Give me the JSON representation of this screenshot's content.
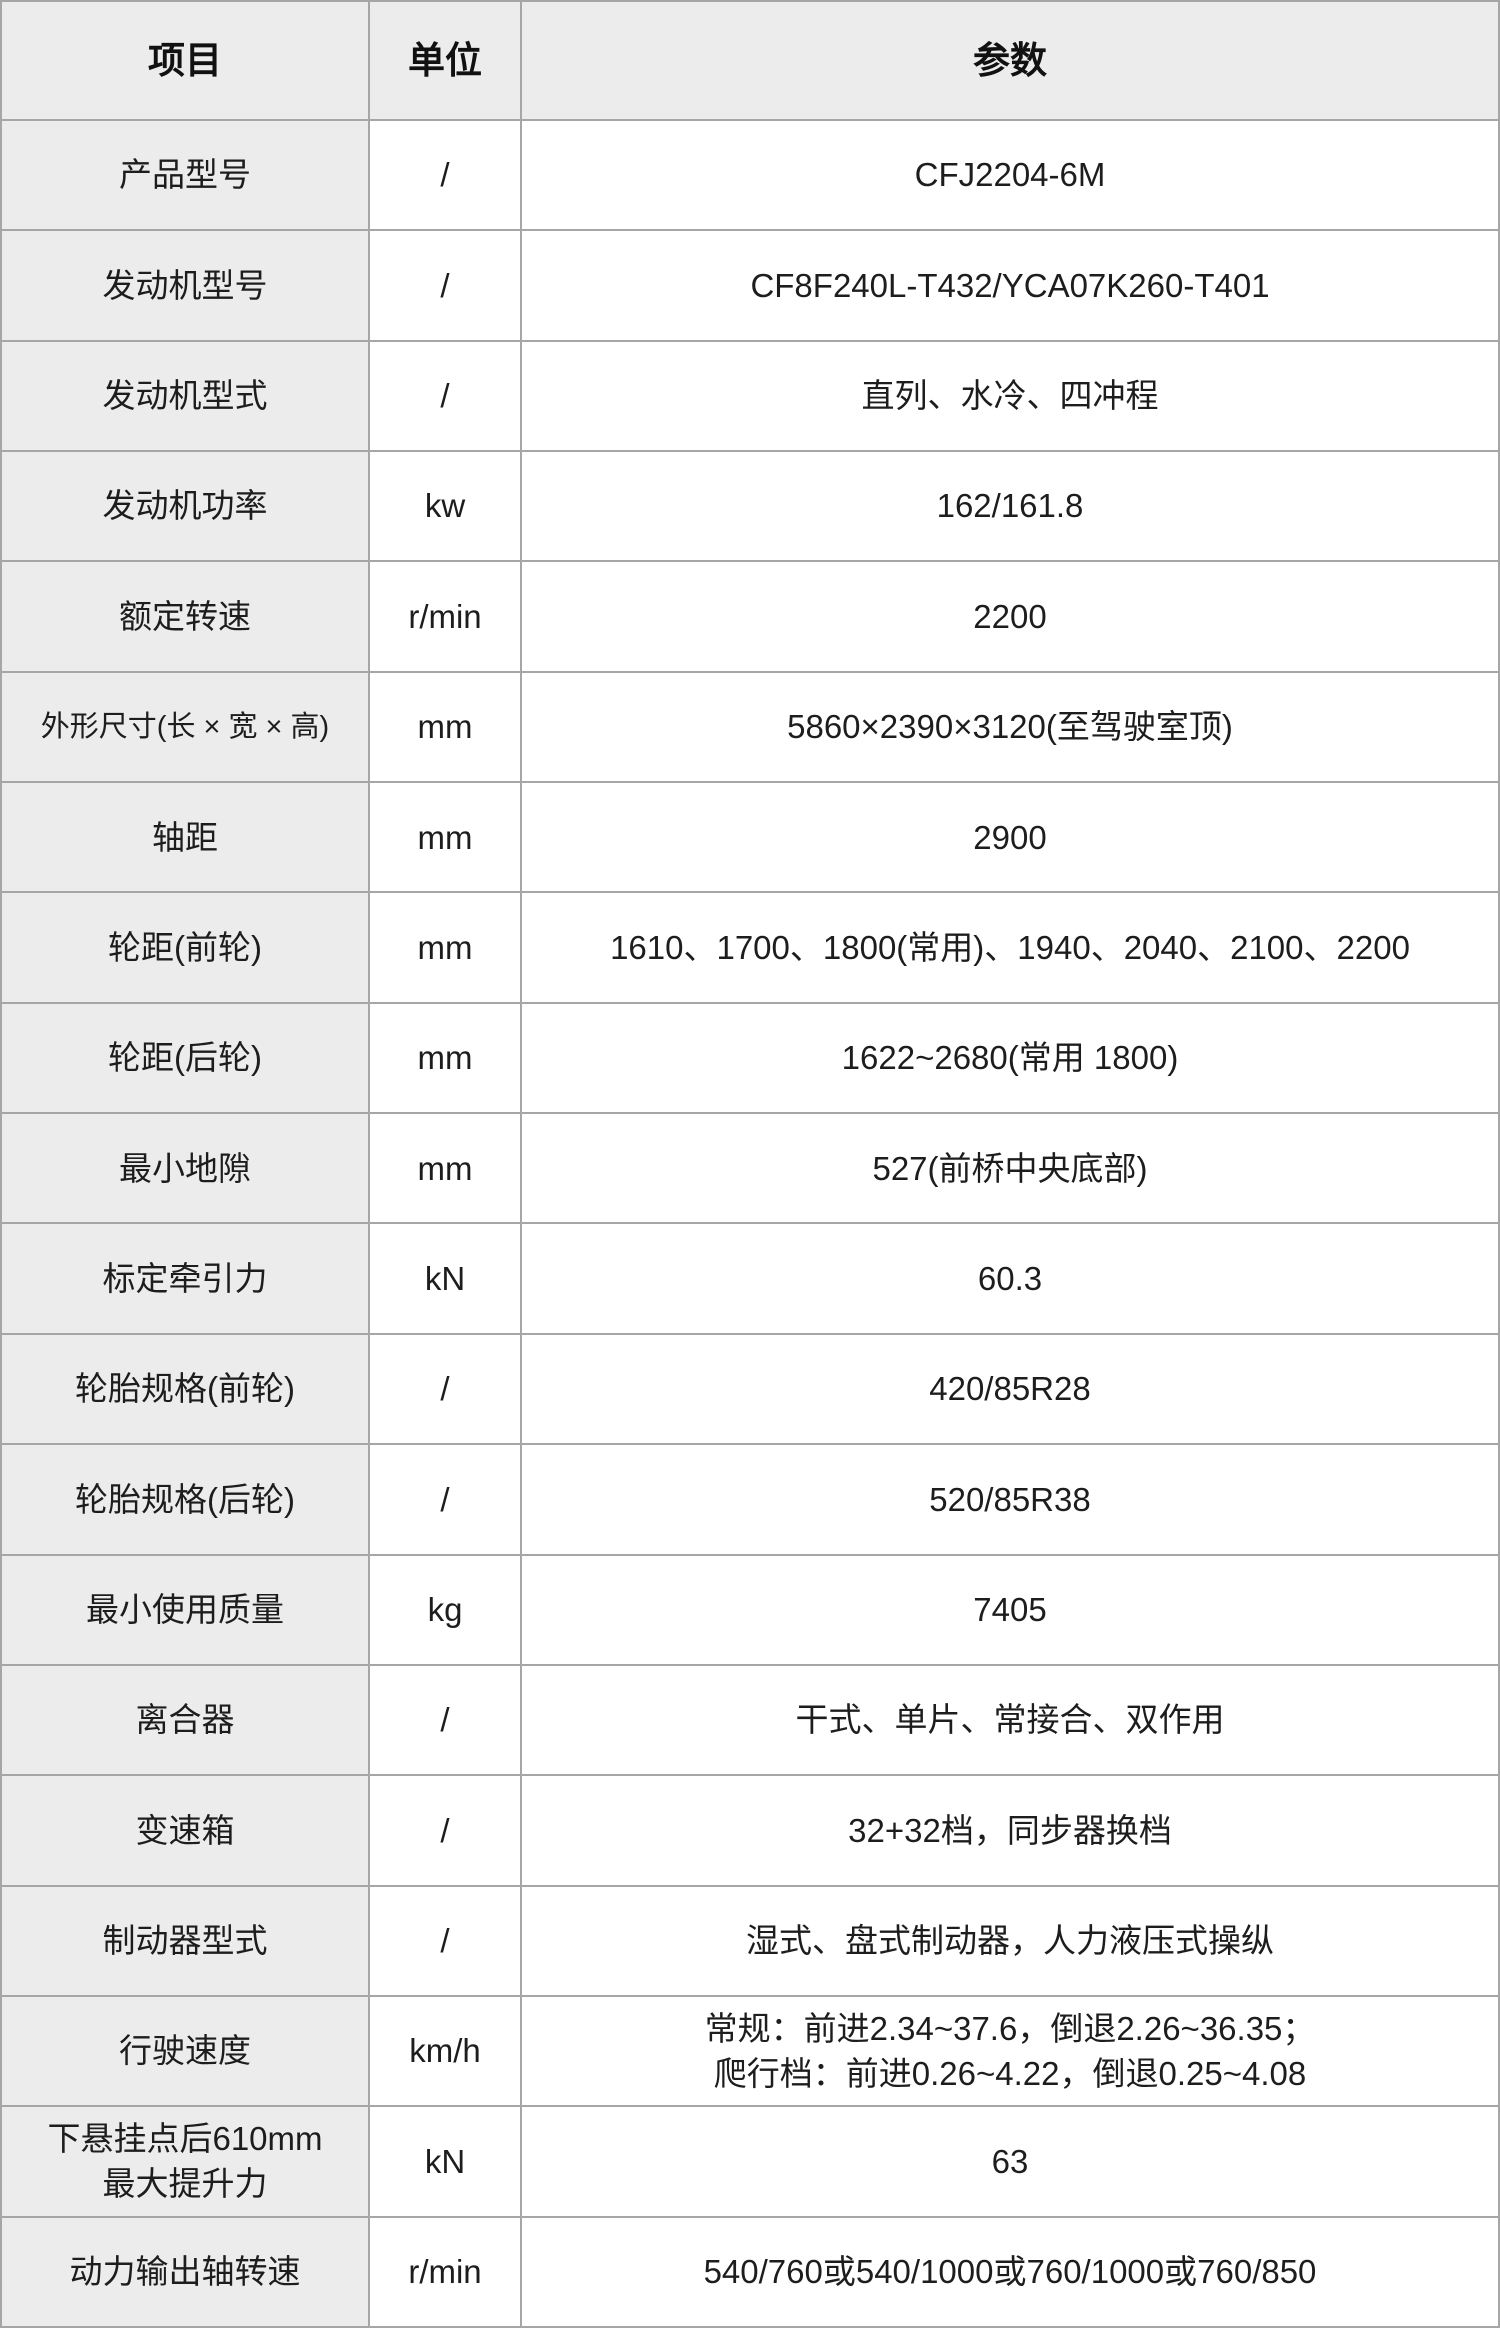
{
  "table": {
    "title": "tractor-specification-table",
    "product_model": "CFJ2204-6M",
    "colors": {
      "header_bg": "#ececec",
      "item_col_bg": "#ececec",
      "cell_bg": "#ffffff",
      "border": "#a6a6a6",
      "text": "#1d1d1d"
    },
    "columns": [
      {
        "label": "项目"
      },
      {
        "label": "单位"
      },
      {
        "label": "参数"
      }
    ],
    "rows": [
      {
        "item": "产品型号",
        "unit": "/",
        "value": "CFJ2204-6M"
      },
      {
        "item": "发动机型号",
        "unit": "/",
        "value": "CF8F240L-T432/YCA07K260-T401"
      },
      {
        "item": "发动机型式",
        "unit": "/",
        "value": "直列、水冷、四冲程"
      },
      {
        "item": "发动机功率",
        "unit": "kw",
        "value": "162/161.8"
      },
      {
        "item": "额定转速",
        "unit": "r/min",
        "value": "2200"
      },
      {
        "item": "外形尺寸(长 × 宽 × 高)",
        "unit": "mm",
        "value": "5860×2390×3120(至驾驶室顶)"
      },
      {
        "item": "轴距",
        "unit": "mm",
        "value": "2900"
      },
      {
        "item": "轮距(前轮)",
        "unit": "mm",
        "value": "1610、1700、1800(常用)、1940、2040、2100、2200"
      },
      {
        "item": "轮距(后轮)",
        "unit": "mm",
        "value": "1622~2680(常用 1800)"
      },
      {
        "item": "最小地隙",
        "unit": "mm",
        "value": "527(前桥中央底部)"
      },
      {
        "item": "标定牵引力",
        "unit": "kN",
        "value": "60.3"
      },
      {
        "item": "轮胎规格(前轮)",
        "unit": "/",
        "value": "420/85R28"
      },
      {
        "item": "轮胎规格(后轮)",
        "unit": "/",
        "value": "520/85R38"
      },
      {
        "item": "最小使用质量",
        "unit": "kg",
        "value": "7405"
      },
      {
        "item": "离合器",
        "unit": "/",
        "value": "干式、单片、常接合、双作用"
      },
      {
        "item": "变速箱",
        "unit": "/",
        "value": "32+32档，同步器换档"
      },
      {
        "item": "制动器型式",
        "unit": "/",
        "value": "湿式、盘式制动器，人力液压式操纵"
      },
      {
        "item": "行驶速度",
        "unit": "km/h",
        "value": "常规：前进2.34~37.6，倒退2.26~36.35；\n爬行档：前进0.26~4.22，倒退0.25~4.08"
      },
      {
        "item": "下悬挂点后610mm\n最大提升力",
        "unit": "kN",
        "value": "63"
      },
      {
        "item": "动力输出轴转速",
        "unit": "r/min",
        "value": "540/760或540/1000或760/1000或760/850"
      }
    ]
  }
}
